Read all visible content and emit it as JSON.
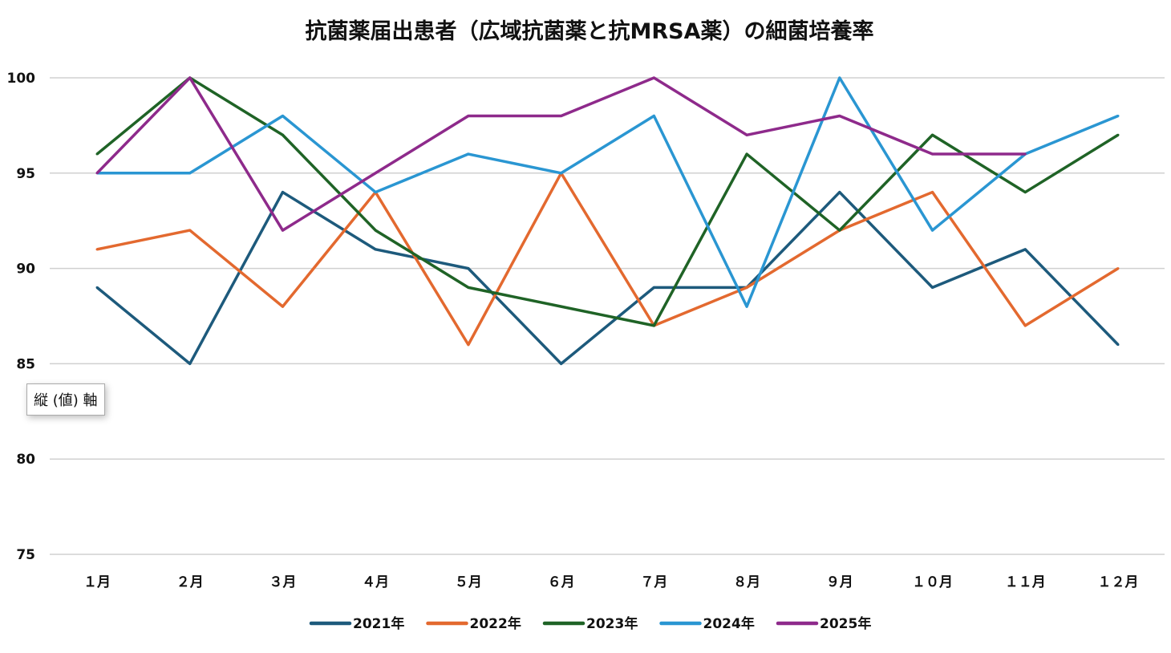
{
  "chart_data": {
    "type": "line",
    "title": "抗菌薬届出患者（広域抗菌薬と抗MRSA薬）の細菌培養率",
    "xlabel": "",
    "ylabel": "",
    "categories": [
      "１月",
      "２月",
      "３月",
      "４月",
      "５月",
      "６月",
      "７月",
      "８月",
      "９月",
      "１０月",
      "１１月",
      "１２月"
    ],
    "ylim": [
      75,
      100
    ],
    "yticks": [
      75,
      80,
      85,
      90,
      95,
      100
    ],
    "grid": true,
    "legend_position": "bottom",
    "series": [
      {
        "name": "2021年",
        "color": "#1d5a7c",
        "values": [
          89,
          85,
          94,
          91,
          90,
          85,
          89,
          89,
          94,
          89,
          91,
          86
        ]
      },
      {
        "name": "2022年",
        "color": "#e3692f",
        "values": [
          91,
          92,
          88,
          94,
          86,
          95,
          87,
          89,
          92,
          94,
          87,
          90
        ]
      },
      {
        "name": "2023年",
        "color": "#1f6326",
        "values": [
          96,
          100,
          97,
          92,
          89,
          88,
          87,
          96,
          92,
          97,
          94,
          97
        ]
      },
      {
        "name": "2024年",
        "color": "#2a96d2",
        "values": [
          95,
          95,
          98,
          94,
          96,
          95,
          98,
          88,
          100,
          92,
          96,
          98
        ]
      },
      {
        "name": "2025年",
        "color": "#8e2a8b",
        "values": [
          95,
          100,
          92,
          95,
          98,
          98,
          100,
          97,
          98,
          96,
          96,
          null
        ]
      }
    ]
  },
  "tooltip": {
    "text": "縦 (値) 軸"
  }
}
